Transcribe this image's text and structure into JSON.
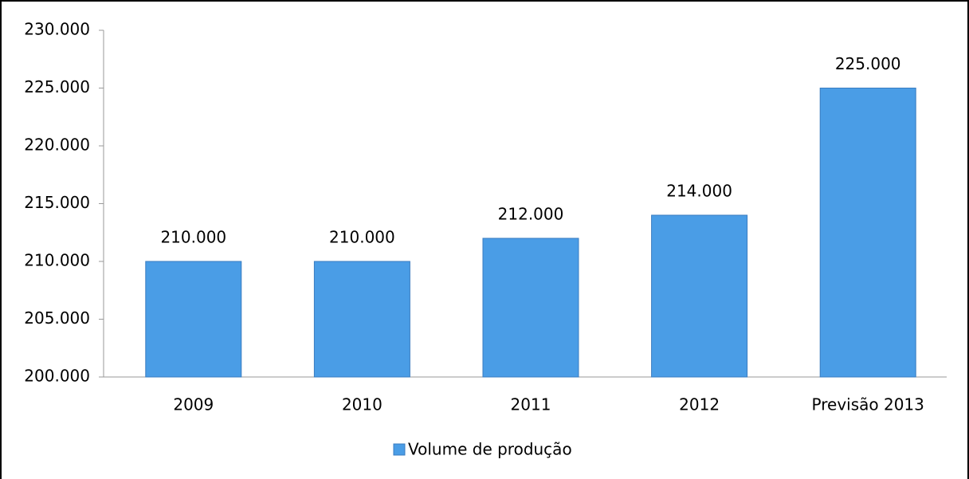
{
  "chart_data": {
    "type": "bar",
    "categories": [
      "2009",
      "2010",
      "2011",
      "2012",
      "Previsão 2013"
    ],
    "series": [
      {
        "name": "Volume de produção",
        "color": "#4a9de6",
        "values": [
          210000,
          210000,
          212000,
          214000,
          225000
        ],
        "value_labels": [
          "210.000",
          "210.000",
          "212.000",
          "214.000",
          "225.000"
        ]
      }
    ],
    "ylim": [
      200000,
      230000
    ],
    "yticks": [
      {
        "value": 200000,
        "label": "200.000"
      },
      {
        "value": 205000,
        "label": "205.000"
      },
      {
        "value": 210000,
        "label": "210.000"
      },
      {
        "value": 215000,
        "label": "215.000"
      },
      {
        "value": 220000,
        "label": "220.000"
      },
      {
        "value": 225000,
        "label": "225.000"
      },
      {
        "value": 230000,
        "label": "230.000"
      }
    ],
    "grid": false,
    "legend": "bottom"
  }
}
